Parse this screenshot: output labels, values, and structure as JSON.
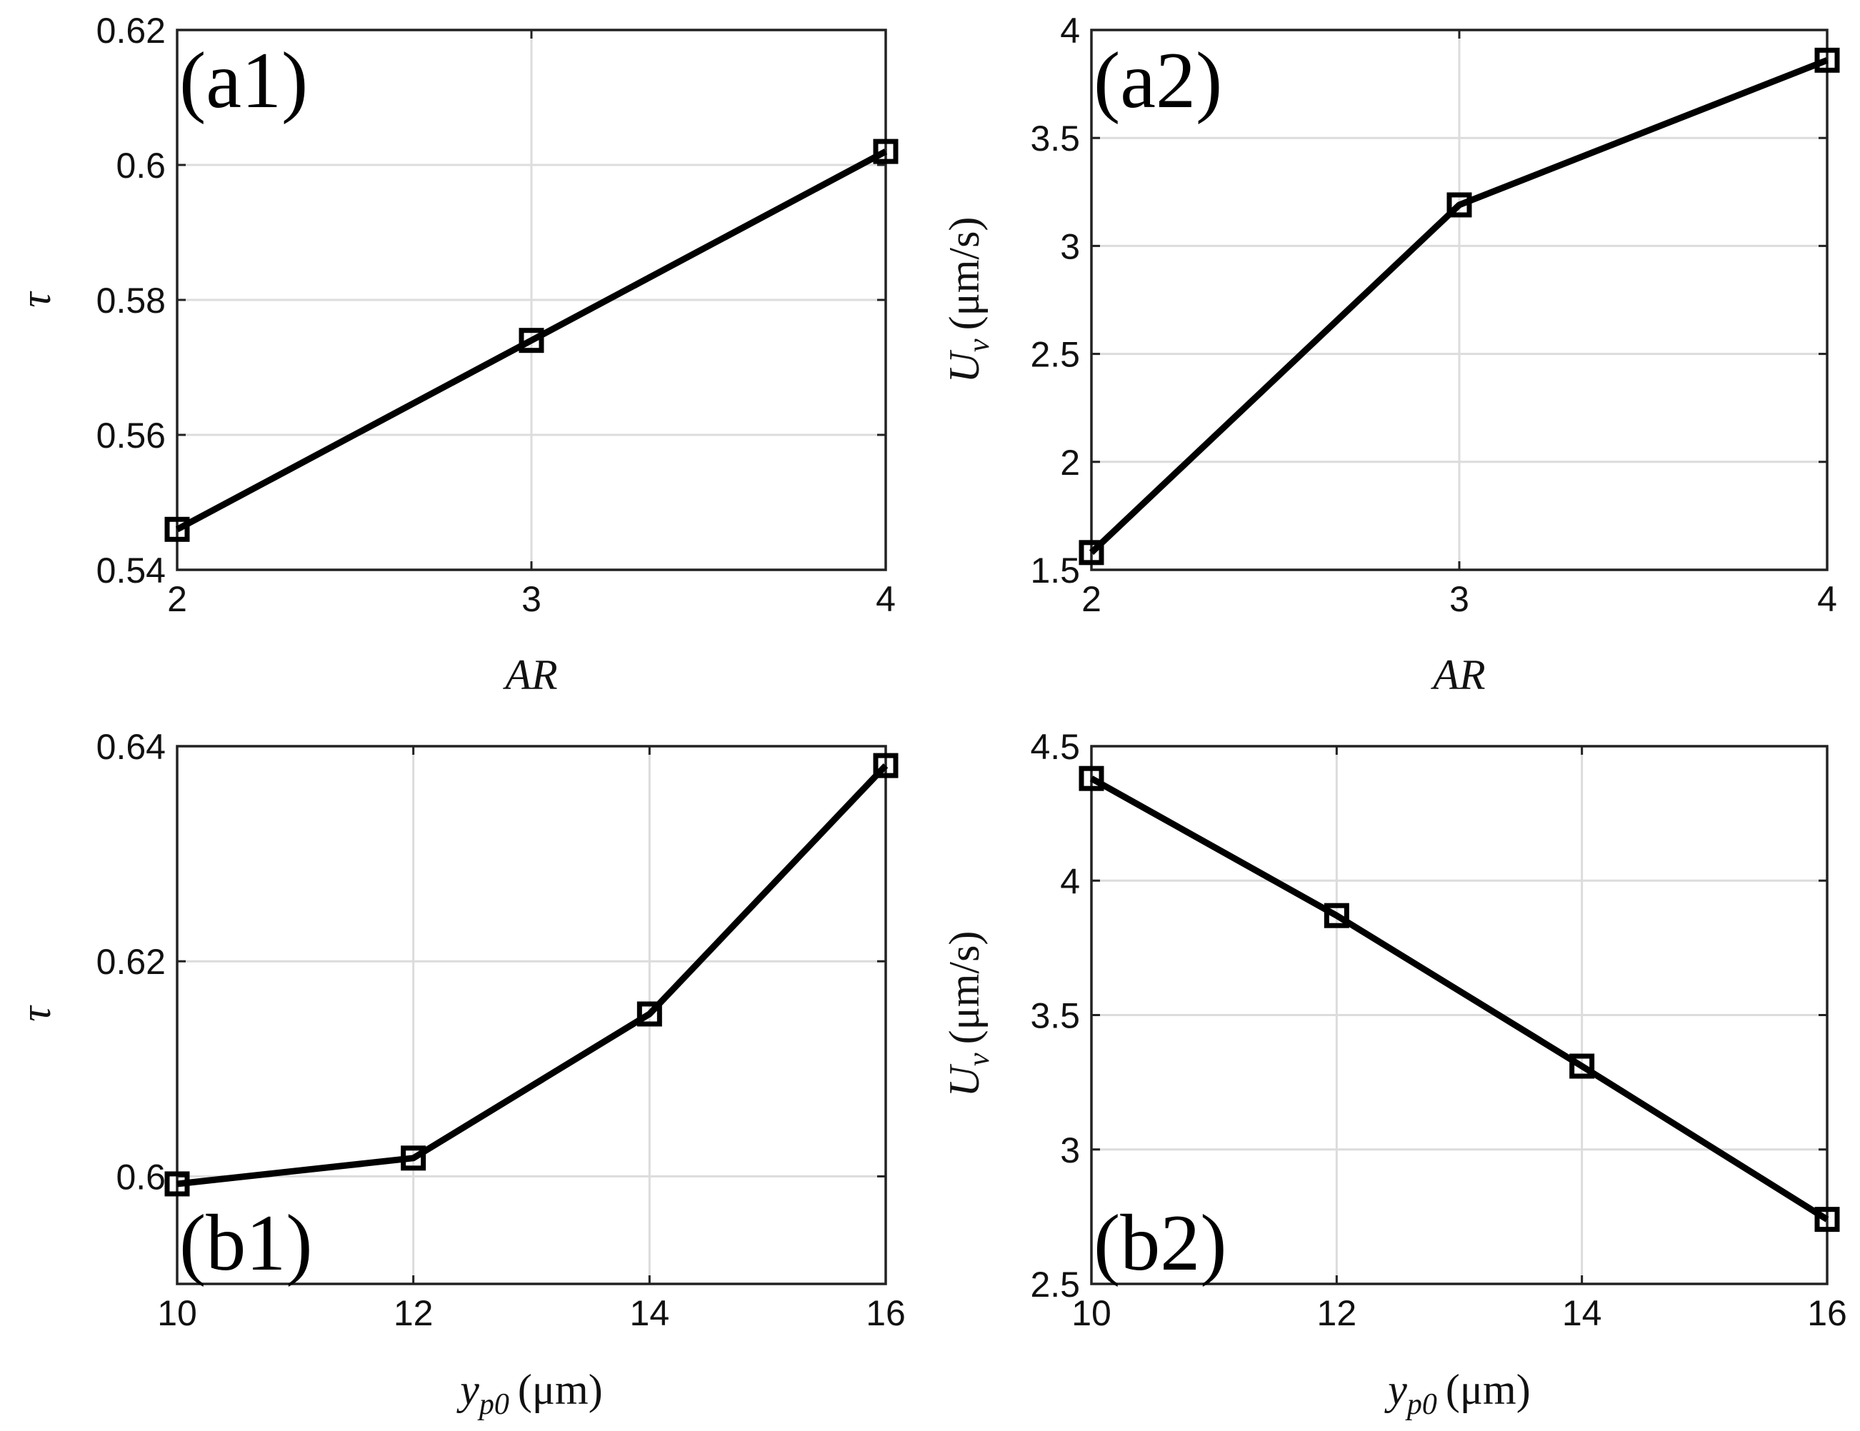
{
  "chart_data": [
    {
      "type": "line",
      "panel_label": "(a1)",
      "x": [
        2,
        3,
        4
      ],
      "y": [
        0.546,
        0.574,
        0.602
      ],
      "xlim": [
        2,
        4
      ],
      "ylim": [
        0.54,
        0.62
      ],
      "xticks": [
        "2",
        "3",
        "4"
      ],
      "yticks": [
        "0.54",
        "0.56",
        "0.58",
        "0.6",
        "0.62"
      ],
      "xlabel": "AR",
      "ylabel": "τ",
      "label_position": "top-left",
      "grid": true,
      "marker": "square"
    },
    {
      "type": "line",
      "panel_label": "(a2)",
      "x": [
        2,
        3,
        4
      ],
      "y": [
        1.58,
        3.19,
        3.86
      ],
      "xlim": [
        2,
        4
      ],
      "ylim": [
        1.5,
        4
      ],
      "xticks": [
        "2",
        "3",
        "4"
      ],
      "yticks": [
        "1.5",
        "2",
        "2.5",
        "3",
        "3.5",
        "4"
      ],
      "xlabel": "AR",
      "ylabel": "U_v (μm/s)",
      "label_position": "top-left",
      "grid": true,
      "marker": "square"
    },
    {
      "type": "line",
      "panel_label": "(b1)",
      "x": [
        10,
        12,
        14,
        16
      ],
      "y": [
        0.5993,
        0.6017,
        0.6151,
        0.6382
      ],
      "xlim": [
        10,
        16
      ],
      "ylim": [
        0.59,
        0.64
      ],
      "xticks": [
        "10",
        "12",
        "14",
        "16"
      ],
      "yticks": [
        "0.6",
        "0.62",
        "0.64"
      ],
      "ytick_values": [
        0.6,
        0.62,
        0.64
      ],
      "xlabel": "y_p0 (μm)",
      "ylabel": "τ",
      "label_position": "bottom-left",
      "grid": true,
      "marker": "square"
    },
    {
      "type": "line",
      "panel_label": "(b2)",
      "x": [
        10,
        12,
        14,
        16
      ],
      "y": [
        4.38,
        3.87,
        3.31,
        2.74
      ],
      "xlim": [
        10,
        16
      ],
      "ylim": [
        2.5,
        4.5
      ],
      "xticks": [
        "10",
        "12",
        "14",
        "16"
      ],
      "yticks": [
        "2.5",
        "3",
        "3.5",
        "4",
        "4.5"
      ],
      "xlabel": "y_p0 (μm)",
      "ylabel": "U_v (μm/s)",
      "label_position": "bottom-left",
      "grid": true,
      "marker": "square"
    }
  ],
  "text": {
    "ar_x": "AR",
    "tau": "τ",
    "uv_U": "U",
    "uv_sub": "v",
    "uv_unit": "(μm/s)",
    "yp0_y": "y",
    "yp0_sub": "p0",
    "yp0_unit": "(μm)"
  }
}
